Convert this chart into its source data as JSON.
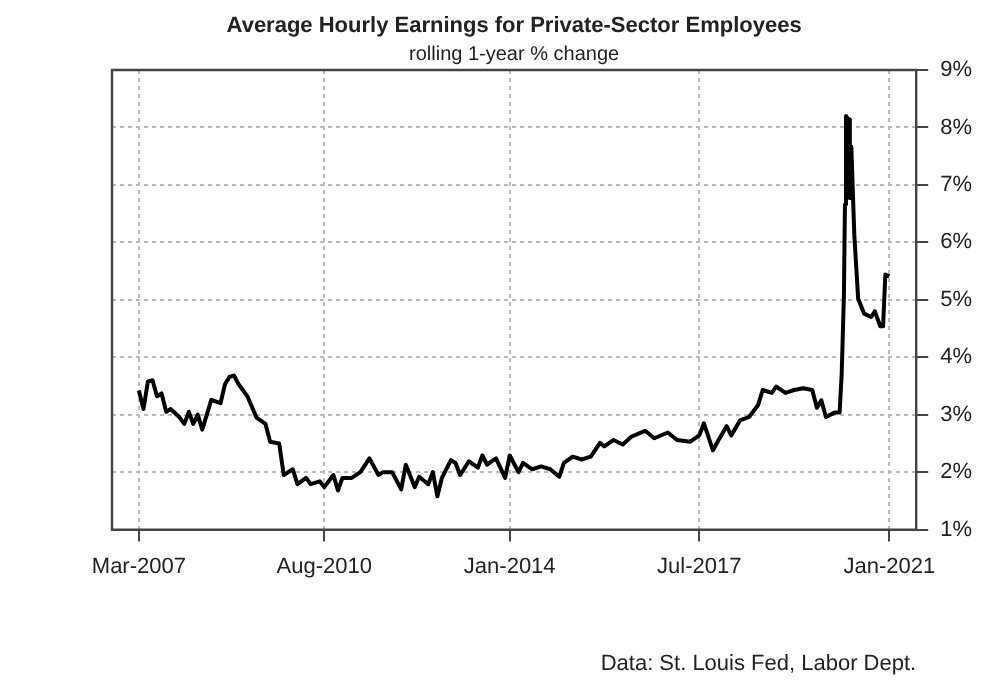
{
  "chart_data": {
    "type": "line",
    "title": "Average Hourly Earnings for Private-Sector Employees",
    "subtitle": "rolling 1-year % change",
    "annotations": [
      "Data: St. Louis Fed, Labor Dept."
    ],
    "x": [
      "2007-03",
      "2007-04",
      "2007-05",
      "2007-06",
      "2007-07",
      "2007-08",
      "2007-09",
      "2007-10",
      "2007-12",
      "2008-01",
      "2008-02",
      "2008-03",
      "2008-04",
      "2008-05",
      "2008-07",
      "2008-09",
      "2008-10",
      "2008-11",
      "2008-12",
      "2009-01",
      "2009-03",
      "2009-05",
      "2009-07",
      "2009-08",
      "2009-10",
      "2009-11",
      "2010-01",
      "2010-02",
      "2010-04",
      "2010-05",
      "2010-07",
      "2010-08",
      "2010-10",
      "2010-11",
      "2010-12",
      "2011-02",
      "2011-04",
      "2011-06",
      "2011-08",
      "2011-09",
      "2011-11",
      "2012-01",
      "2012-02",
      "2012-04",
      "2012-05",
      "2012-07",
      "2012-08",
      "2012-09",
      "2012-10",
      "2012-12",
      "2013-01",
      "2013-02",
      "2013-04",
      "2013-06",
      "2013-07",
      "2013-08",
      "2013-10",
      "2013-12",
      "2014-01",
      "2014-03",
      "2014-04",
      "2014-06",
      "2014-08",
      "2014-10",
      "2014-12",
      "2015-01",
      "2015-03",
      "2015-05",
      "2015-07",
      "2015-09",
      "2015-10",
      "2015-12",
      "2016-02",
      "2016-04",
      "2016-07",
      "2016-09",
      "2016-12",
      "2017-02",
      "2017-05",
      "2017-07",
      "2017-08",
      "2017-10",
      "2017-11",
      "2018-01",
      "2018-02",
      "2018-04",
      "2018-06",
      "2018-08",
      "2018-09",
      "2018-11",
      "2018-12",
      "2019-02",
      "2019-04",
      "2019-06",
      "2019-08",
      "2019-09",
      "2019-10",
      "2019-11",
      "2020-01",
      "2020-02",
      "2020-02-15",
      "2020-03-01",
      "2020-03-08",
      "2020-03-15",
      "2020-04-01",
      "2020-04-10",
      "2020-04-20",
      "2020-05-10",
      "2020-06-05",
      "2020-07-15",
      "2020-09",
      "2020-09-25",
      "2020-11",
      "2020-11-20",
      "2020-12-05",
      "2021-01"
    ],
    "series": [
      {
        "color": "#000000",
        "values": [
          3.42,
          3.1,
          3.58,
          3.6,
          3.32,
          3.37,
          3.05,
          3.1,
          2.95,
          2.84,
          3.05,
          2.84,
          3.0,
          2.74,
          3.26,
          3.2,
          3.53,
          3.66,
          3.68,
          3.53,
          3.32,
          2.95,
          2.84,
          2.53,
          2.5,
          1.95,
          2.05,
          1.79,
          1.9,
          1.79,
          1.84,
          1.74,
          1.95,
          1.68,
          1.9,
          1.9,
          2.0,
          2.24,
          1.95,
          2.0,
          2.0,
          1.7,
          2.13,
          1.74,
          1.92,
          1.79,
          2.0,
          1.58,
          1.9,
          2.21,
          2.16,
          1.95,
          2.19,
          2.08,
          2.29,
          2.13,
          2.24,
          1.9,
          2.29,
          2.0,
          2.16,
          2.05,
          2.1,
          2.05,
          1.92,
          2.16,
          2.27,
          2.22,
          2.27,
          2.51,
          2.45,
          2.56,
          2.48,
          2.62,
          2.72,
          2.59,
          2.69,
          2.56,
          2.53,
          2.64,
          2.85,
          2.38,
          2.53,
          2.8,
          2.64,
          2.9,
          2.96,
          3.17,
          3.43,
          3.38,
          3.49,
          3.38,
          3.43,
          3.46,
          3.43,
          3.12,
          3.25,
          2.96,
          3.04,
          3.04,
          3.7,
          5.07,
          6.66,
          8.2,
          8.14,
          6.77,
          7.67,
          6.13,
          5.02,
          4.76,
          4.7,
          4.8,
          4.54,
          4.54,
          5.44,
          5.41
        ]
      }
    ],
    "xlim": [
      "2006-09",
      "2021-07"
    ],
    "xticks": [
      {
        "value": "2007-03",
        "label": "Mar-2007"
      },
      {
        "value": "2010-08",
        "label": "Aug-2010"
      },
      {
        "value": "2014-01",
        "label": "Jan-2014"
      },
      {
        "value": "2017-07",
        "label": "Jul-2017"
      },
      {
        "value": "2021-01",
        "label": "Jan-2021"
      }
    ],
    "ylim": [
      1,
      9
    ],
    "yticks": [
      {
        "value": 1,
        "label": "1%"
      },
      {
        "value": 2,
        "label": "2%"
      },
      {
        "value": 3,
        "label": "3%"
      },
      {
        "value": 4,
        "label": "4%"
      },
      {
        "value": 5,
        "label": "5%"
      },
      {
        "value": 6,
        "label": "6%"
      },
      {
        "value": 7,
        "label": "7%"
      },
      {
        "value": 8,
        "label": "8%"
      },
      {
        "value": 9,
        "label": "9%"
      }
    ],
    "grid": true,
    "marker": "none",
    "line_style": "solid"
  }
}
